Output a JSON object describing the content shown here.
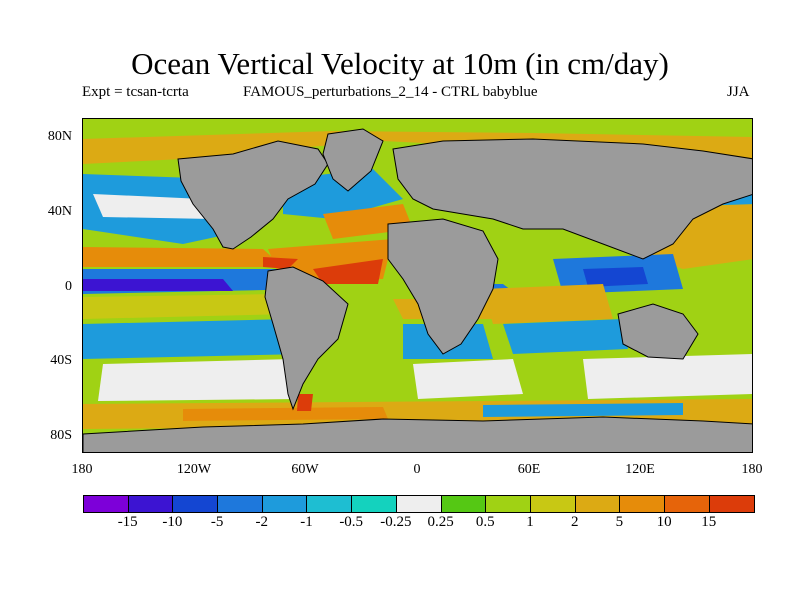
{
  "header": {
    "title": "Ocean Vertical Velocity at 10m (in cm/day)",
    "experiment": "Expt = tcsan-tcrta",
    "description": "FAMOUS_perturbations_2_14 - CTRL babyblue",
    "season": "JJA"
  },
  "map": {
    "lat_labels": [
      "80N",
      "40N",
      "0",
      "40S",
      "80S"
    ],
    "lon_labels": [
      "180",
      "120W",
      "60W",
      "0",
      "60E",
      "120E",
      "180"
    ],
    "land_color": "#9b9b9b",
    "missing_color": "#eeeeee"
  },
  "colorbar": {
    "colors": [
      "#7d00d9",
      "#3c14d2",
      "#1446d2",
      "#1e78dc",
      "#1e9bdc",
      "#1ebed2",
      "#14d2be",
      "#eeeeee",
      "#55c814",
      "#a0d214",
      "#c8c814",
      "#dcaa14",
      "#e68c0a",
      "#e6640a",
      "#dc3c0a"
    ],
    "labels": [
      "-15",
      "-10",
      "-5",
      "-2",
      "-1",
      "-0.5",
      "-0.25",
      "0.25",
      "0.5",
      "1",
      "2",
      "5",
      "10",
      "15"
    ]
  }
}
